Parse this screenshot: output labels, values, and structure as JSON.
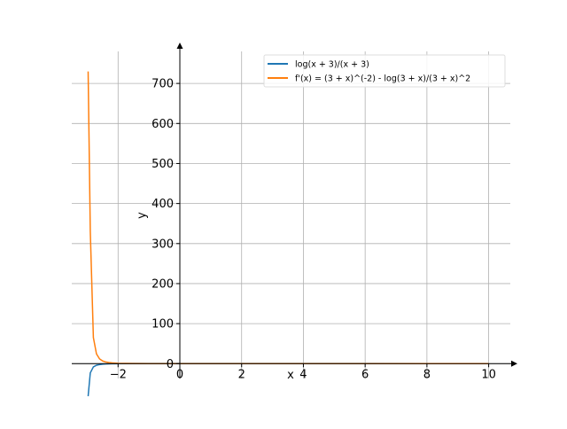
{
  "chart_data": {
    "type": "line",
    "title": "",
    "xlabel": "x",
    "ylabel": "y",
    "xlim": [
      -3.5,
      10.7
    ],
    "ylim": [
      -37,
      780
    ],
    "x_ticks": [
      -2,
      0,
      2,
      4,
      6,
      8,
      10
    ],
    "x_tick_labels": [
      "−2",
      "0",
      "2",
      "4",
      "6",
      "8",
      "10"
    ],
    "y_ticks": [
      0,
      100,
      200,
      300,
      400,
      500,
      600,
      700
    ],
    "y_tick_labels": [
      "0",
      "100",
      "200",
      "300",
      "400",
      "500",
      "600",
      "700"
    ],
    "grid": true,
    "legend_position": "top-right",
    "series": [
      {
        "name": "log(x + 3)/(x + 3)",
        "color": "#1f77b4",
        "x": [
          -2.97,
          -2.9,
          -2.8,
          -2.7,
          -2.6,
          -2.5,
          -2.4,
          -2.3,
          -2.2,
          -2.1,
          -2.0,
          -1.5,
          -1.0,
          0.0,
          2.0,
          4.0,
          6.0,
          8.0,
          10.0
        ],
        "y": [
          -116.9,
          -23.0,
          -8.05,
          -4.01,
          -2.29,
          -1.39,
          -0.85,
          -0.51,
          -0.28,
          -0.12,
          0.0,
          0.27,
          0.35,
          0.37,
          0.32,
          0.28,
          0.24,
          0.22,
          0.2
        ]
      },
      {
        "name": "f'(x) = (3 + x)^(-2) - log(3 + x)/(3 + x)^2",
        "color": "#ff7f0e",
        "x": [
          -2.97,
          -2.9,
          -2.8,
          -2.7,
          -2.6,
          -2.5,
          -2.4,
          -2.3,
          -2.2,
          -2.1,
          -2.0,
          -1.5,
          -1.0,
          0.0,
          2.0,
          4.0,
          6.0,
          8.0,
          10.0
        ],
        "y": [
          730,
          330.3,
          65.2,
          24.5,
          11.98,
          6.77,
          4.19,
          2.77,
          1.91,
          1.36,
          1.0,
          0.26,
          0.08,
          -0.01,
          -0.02,
          -0.02,
          -0.01,
          -0.01,
          -0.01
        ]
      }
    ]
  }
}
